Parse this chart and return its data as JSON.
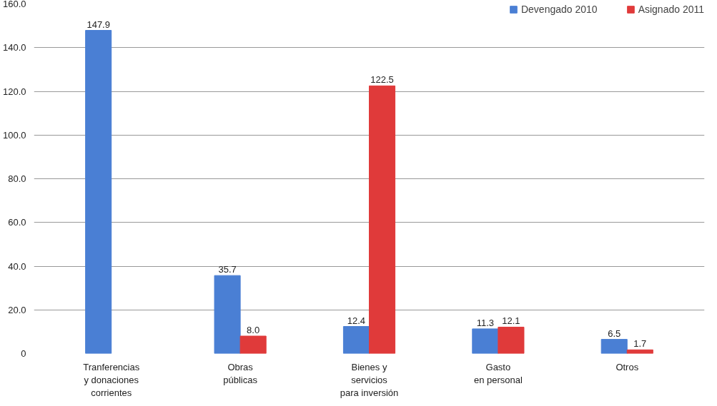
{
  "chart_data": {
    "type": "bar",
    "categories": [
      "Tranferencias\ny donaciones\ncorrientes",
      "Obras\npúblicas",
      "Bienes y\nservicios\npara inversión",
      "Gasto\nen personal",
      "Otros"
    ],
    "series": [
      {
        "name": "Devengado 2010",
        "color": "#4a7fd4",
        "values": [
          147.9,
          35.7,
          12.4,
          11.3,
          6.5
        ],
        "value_labels": [
          "147.9",
          "35.7",
          "12.4",
          "11.3",
          "6.5"
        ]
      },
      {
        "name": "Asignado 2011",
        "color": "#e03a3a",
        "values": [
          null,
          8.0,
          122.5,
          12.1,
          1.7
        ],
        "value_labels": [
          null,
          "8.0",
          "122.5",
          "12.1",
          "1.7"
        ]
      }
    ],
    "ylim": [
      0,
      160
    ],
    "yticks": [
      {
        "value": 0,
        "label": "0"
      },
      {
        "value": 20,
        "label": "20.0"
      },
      {
        "value": 40,
        "label": "40.0"
      },
      {
        "value": 60,
        "label": "60.0"
      },
      {
        "value": 80,
        "label": "80.0"
      },
      {
        "value": 100,
        "label": "100.0"
      },
      {
        "value": 120,
        "label": "120.0"
      },
      {
        "value": 140,
        "label": "140.0"
      },
      {
        "value": 160,
        "label": "160.0"
      }
    ],
    "grid": "y",
    "legend": "top right"
  }
}
